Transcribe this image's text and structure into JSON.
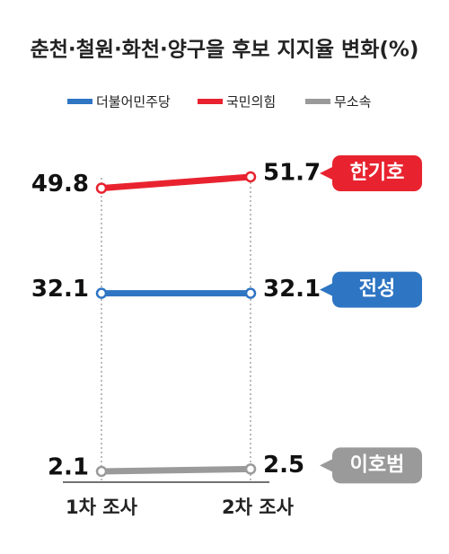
{
  "chart_data": {
    "type": "line",
    "title": "춘천·철원·화천·양구을 후보 지지율 변화(%)",
    "categories": [
      "1차 조사",
      "2차 조사"
    ],
    "series": [
      {
        "name": "더불어민주당",
        "color": "#2e75c3",
        "values": [
          32.1,
          32.1
        ],
        "candidate": "전성"
      },
      {
        "name": "국민의힘",
        "color": "#e8232f",
        "values": [
          49.8,
          51.7
        ],
        "candidate": "한기호"
      },
      {
        "name": "무소속",
        "color": "#9a9a9a",
        "values": [
          2.1,
          2.5
        ],
        "candidate": "이호범"
      }
    ]
  }
}
